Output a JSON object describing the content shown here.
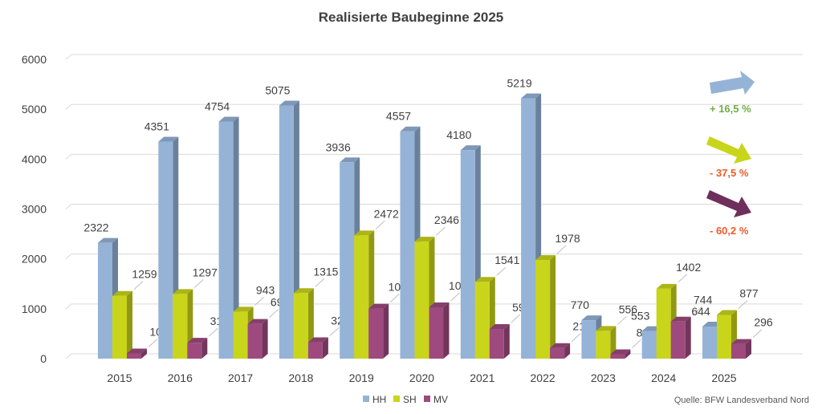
{
  "chart_data": {
    "type": "bar",
    "title": "Realisierte Baubeginne 2025",
    "categories": [
      "2015",
      "2016",
      "2017",
      "2018",
      "2019",
      "2020",
      "2021",
      "2022",
      "2023",
      "2024",
      "2025"
    ],
    "series": [
      {
        "name": "HH",
        "color": "#95B3D7",
        "values": [
          2322,
          4351,
          4754,
          5075,
          3936,
          4557,
          4180,
          5219,
          770,
          553,
          644
        ]
      },
      {
        "name": "SH",
        "color": "#C9D51A",
        "values": [
          1259,
          1297,
          943,
          1315,
          2472,
          2346,
          1541,
          1978,
          556,
          1402,
          877
        ]
      },
      {
        "name": "MV",
        "color": "#9E4A7E",
        "values": [
          104,
          319,
          697,
          329,
          1004,
          1030,
          595,
          214,
          89,
          744,
          296
        ]
      }
    ],
    "ylim": [
      0,
      6000
    ],
    "yticks": [
      0,
      1000,
      2000,
      3000,
      4000,
      5000,
      6000
    ],
    "grid": true,
    "legend_position": "bottom",
    "annotations": [
      {
        "text": "+ 16,5 %",
        "color": "#70AD47",
        "arrow": "up",
        "arrow_color": "#95B3D7"
      },
      {
        "text": "- 37,5 %",
        "color": "#F05A28",
        "arrow": "down",
        "arrow_color": "#C9D51A"
      },
      {
        "text": "- 60,2 %",
        "color": "#F05A28",
        "arrow": "down",
        "arrow_color": "#6E2F5C"
      }
    ],
    "source": "Quelle: BFW Landesverband Nord"
  }
}
